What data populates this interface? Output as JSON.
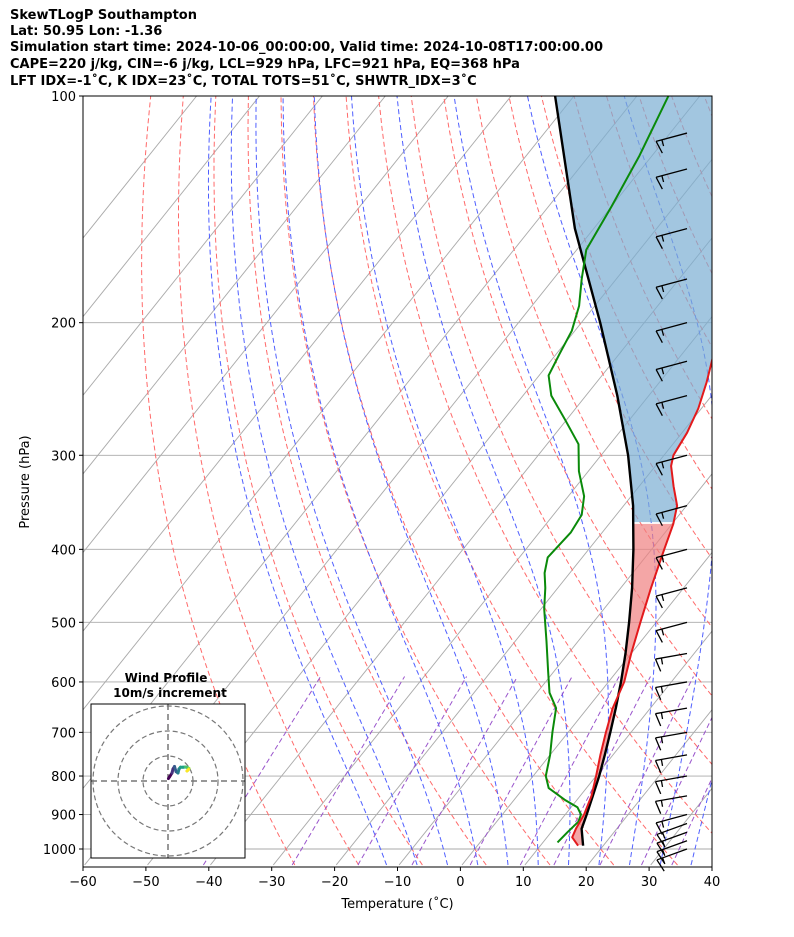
{
  "header": {
    "line1": "SkewTLogP Southampton",
    "line2": "Lat: 50.95   Lon: -1.36",
    "line3": "Simulation start time: 2024-10-06_00:00:00, Valid time: 2024-10-08T17:00:00.00",
    "line4": "CAPE=220 j/kg, CIN=-6 j/kg, LCL=929 hPa, LFC=921 hPa, EQ=368 hPa",
    "line5": "LFT IDX=-1$^\\circ$C, K IDX=23$^\\circ$C, TOTAL TOTS=51$^\\circ$C, SHWTR_IDX=3$^\\circ$C"
  },
  "header_display": {
    "line5": "LFT IDX=-1˚C, K IDX=23˚C, TOTAL TOTS=51˚C, SHWTR_IDX=3˚C"
  },
  "chart_data": {
    "type": "line",
    "subtype": "skew-t log-p",
    "xlabel": "Temperature (˚C)",
    "ylabel": "Pressure (hPa)",
    "xlim": [
      -60,
      40
    ],
    "ylim": [
      1050,
      100
    ],
    "y_scale": "log",
    "x_ticks": [
      -60,
      -50,
      -40,
      -30,
      -20,
      -10,
      0,
      10,
      20,
      30,
      40
    ],
    "y_ticks": [
      1000,
      900,
      800,
      700,
      600,
      500,
      400,
      300,
      200,
      100
    ],
    "colors": {
      "temperature": "#e31a1c",
      "dewpoint": "#0a8a0a",
      "parcel": "#000000",
      "cape_fill": "#7aaed3",
      "cin_fill": "#f08080",
      "dry_adiabat": "#ff6a6a",
      "moist_adiabat": "#4f5fff",
      "mixing_ratio": "#9a55cc",
      "isotherm": "#aaaaaa"
    },
    "series": [],
    "temperature_profile": [
      [
        990,
        16
      ],
      [
        965,
        14
      ],
      [
        940,
        13.5
      ],
      [
        900,
        13
      ],
      [
        850,
        11.8
      ],
      [
        800,
        10
      ],
      [
        750,
        8
      ],
      [
        700,
        6
      ],
      [
        650,
        4
      ],
      [
        600,
        2.5
      ],
      [
        550,
        0
      ],
      [
        500,
        -2.5
      ],
      [
        450,
        -5.2
      ],
      [
        400,
        -8
      ],
      [
        370,
        -9.8
      ],
      [
        350,
        -11.5
      ],
      [
        330,
        -14.5
      ],
      [
        310,
        -17.5
      ],
      [
        300,
        -18.5
      ],
      [
        280,
        -19.2
      ],
      [
        260,
        -20.5
      ],
      [
        240,
        -22.5
      ],
      [
        220,
        -25
      ],
      [
        205,
        -27
      ],
      [
        190,
        -28.5
      ],
      [
        170,
        -31
      ],
      [
        150,
        -34
      ],
      [
        130,
        -38
      ],
      [
        118,
        -40.5
      ],
      [
        110,
        -43
      ],
      [
        100,
        -46
      ]
    ],
    "dewpoint_profile": [
      [
        980,
        12.3
      ],
      [
        950,
        12.6
      ],
      [
        920,
        13
      ],
      [
        900,
        12.5
      ],
      [
        880,
        11
      ],
      [
        860,
        8
      ],
      [
        830,
        4
      ],
      [
        800,
        2
      ],
      [
        750,
        0
      ],
      [
        700,
        -2.5
      ],
      [
        650,
        -5
      ],
      [
        620,
        -8
      ],
      [
        580,
        -11
      ],
      [
        530,
        -15
      ],
      [
        480,
        -19.5
      ],
      [
        450,
        -22
      ],
      [
        430,
        -24
      ],
      [
        410,
        -25.5
      ],
      [
        380,
        -25
      ],
      [
        360,
        -25.5
      ],
      [
        340,
        -27.5
      ],
      [
        315,
        -31.5
      ],
      [
        290,
        -35
      ],
      [
        270,
        -40
      ],
      [
        250,
        -45.5
      ],
      [
        235,
        -48.5
      ],
      [
        220,
        -49.5
      ],
      [
        205,
        -50.5
      ],
      [
        190,
        -52.5
      ],
      [
        175,
        -55.5
      ],
      [
        160,
        -58.5
      ],
      [
        140,
        -60
      ],
      [
        120,
        -62
      ],
      [
        100,
        -65
      ]
    ],
    "parcel_profile": [
      [
        990,
        16.8
      ],
      [
        940,
        14.4
      ],
      [
        900,
        13.4
      ],
      [
        850,
        12
      ],
      [
        800,
        10.5
      ],
      [
        750,
        8.7
      ],
      [
        700,
        6.7
      ],
      [
        650,
        4.5
      ],
      [
        600,
        2
      ],
      [
        550,
        -0.9
      ],
      [
        500,
        -4.3
      ],
      [
        450,
        -8.2
      ],
      [
        400,
        -12.9
      ],
      [
        368,
        -16.4
      ],
      [
        350,
        -18.5
      ],
      [
        300,
        -25.7
      ],
      [
        250,
        -35
      ],
      [
        200,
        -47
      ],
      [
        150,
        -63
      ],
      [
        120,
        -74
      ],
      [
        100,
        -83
      ]
    ],
    "wind_barbs": [
      {
        "p": 1000,
        "speed_kt": 15,
        "dir_deg": 250
      },
      {
        "p": 975,
        "speed_kt": 15,
        "dir_deg": 250
      },
      {
        "p": 950,
        "speed_kt": 15,
        "dir_deg": 250
      },
      {
        "p": 925,
        "speed_kt": 15,
        "dir_deg": 250
      },
      {
        "p": 900,
        "speed_kt": 15,
        "dir_deg": 255
      },
      {
        "p": 850,
        "speed_kt": 15,
        "dir_deg": 260
      },
      {
        "p": 800,
        "speed_kt": 15,
        "dir_deg": 260
      },
      {
        "p": 750,
        "speed_kt": 15,
        "dir_deg": 260
      },
      {
        "p": 700,
        "speed_kt": 15,
        "dir_deg": 260
      },
      {
        "p": 650,
        "speed_kt": 15,
        "dir_deg": 260
      },
      {
        "p": 600,
        "speed_kt": 15,
        "dir_deg": 260
      },
      {
        "p": 550,
        "speed_kt": 15,
        "dir_deg": 260
      },
      {
        "p": 500,
        "speed_kt": 15,
        "dir_deg": 255
      },
      {
        "p": 450,
        "speed_kt": 15,
        "dir_deg": 255
      },
      {
        "p": 400,
        "speed_kt": 15,
        "dir_deg": 255
      },
      {
        "p": 350,
        "speed_kt": 15,
        "dir_deg": 255
      },
      {
        "p": 300,
        "speed_kt": 15,
        "dir_deg": 255
      },
      {
        "p": 250,
        "speed_kt": 15,
        "dir_deg": 255
      },
      {
        "p": 225,
        "speed_kt": 15,
        "dir_deg": 255
      },
      {
        "p": 200,
        "speed_kt": 15,
        "dir_deg": 255
      },
      {
        "p": 175,
        "speed_kt": 15,
        "dir_deg": 255
      },
      {
        "p": 150,
        "speed_kt": 15,
        "dir_deg": 255
      },
      {
        "p": 125,
        "speed_kt": 15,
        "dir_deg": 255
      },
      {
        "p": 112,
        "speed_kt": 15,
        "dir_deg": 255
      }
    ],
    "hodograph": {
      "title": "Wind Profile",
      "subtitle": "10m/s increment",
      "colormap": "viridis",
      "points_uv": [
        [
          0.2,
          1.0
        ],
        [
          0.7,
          1.8
        ],
        [
          1.6,
          3.2
        ],
        [
          2.0,
          4.8
        ],
        [
          2.6,
          5.8
        ],
        [
          3.2,
          3.8
        ],
        [
          4.0,
          3.2
        ],
        [
          4.4,
          4.8
        ],
        [
          5.0,
          5.5
        ],
        [
          6.0,
          5.5
        ],
        [
          7.0,
          5.6
        ],
        [
          7.8,
          5.4
        ],
        [
          8.4,
          5.0
        ],
        [
          8.0,
          4.4
        ],
        [
          7.6,
          4.0
        ],
        [
          8.2,
          4.6
        ]
      ]
    }
  }
}
